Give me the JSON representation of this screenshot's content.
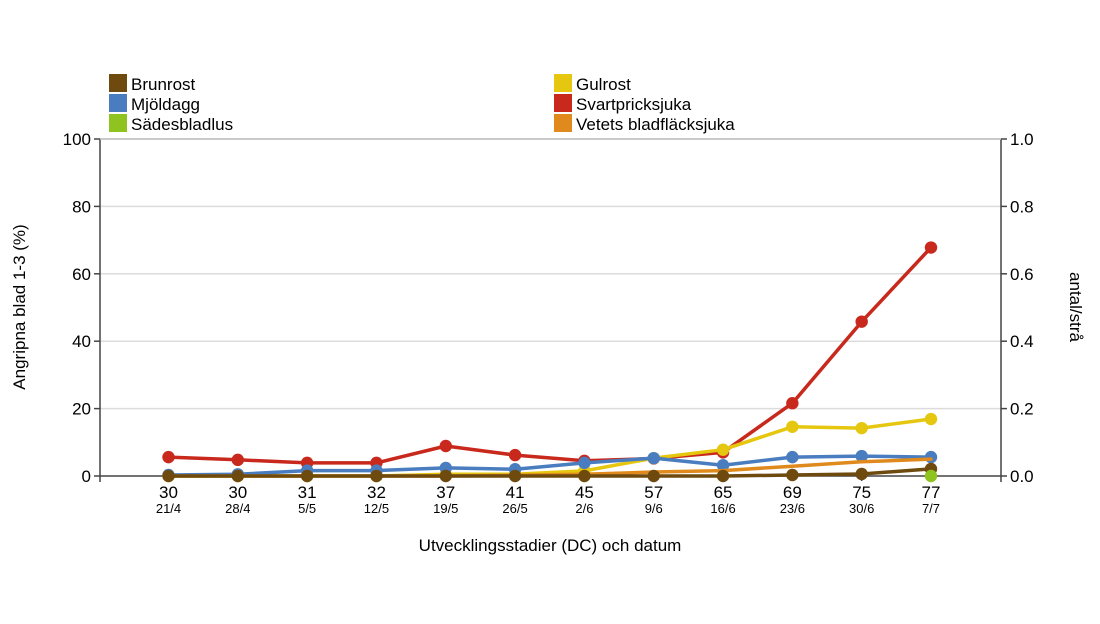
{
  "chart_data": {
    "type": "line",
    "xlabel": "Utvecklingsstadier (DC) och datum",
    "ylabel": "Angripna blad 1-3 (%)",
    "y2label": "antal/strå",
    "ylim": [
      0,
      100
    ],
    "y2lim": [
      0,
      1.0
    ],
    "yticks": [
      "0",
      "20",
      "40",
      "60",
      "80",
      "100"
    ],
    "y2ticks": [
      "0.0",
      "0.2",
      "0.4",
      "0.6",
      "0.8",
      "1.0"
    ],
    "grid": true,
    "legend_position": "top",
    "categories": [
      {
        "dc": "30",
        "date": "21/4"
      },
      {
        "dc": "30",
        "date": "28/4"
      },
      {
        "dc": "31",
        "date": "5/5"
      },
      {
        "dc": "32",
        "date": "12/5"
      },
      {
        "dc": "37",
        "date": "19/5"
      },
      {
        "dc": "41",
        "date": "26/5"
      },
      {
        "dc": "45",
        "date": "2/6"
      },
      {
        "dc": "57",
        "date": "9/6"
      },
      {
        "dc": "65",
        "date": "16/6"
      },
      {
        "dc": "69",
        "date": "23/6"
      },
      {
        "dc": "75",
        "date": "30/6"
      },
      {
        "dc": "77",
        "date": "7/7"
      }
    ],
    "series": [
      {
        "name": "Svartpricksjuka",
        "color": "#c8291c",
        "axis": "left",
        "marker": true,
        "values": [
          5.6,
          4.8,
          3.9,
          3.9,
          8.9,
          6.2,
          4.5,
          5.2,
          7.0,
          21.6,
          45.8,
          67.8
        ]
      },
      {
        "name": "Gulrost",
        "color": "#e6c70f",
        "axis": "left",
        "marker": true,
        "values": [
          0,
          0,
          0,
          0,
          0.5,
          0.5,
          1.5,
          5.3,
          7.8,
          14.6,
          14.2,
          16.9
        ]
      },
      {
        "name": "Mjöldagg",
        "color": "#4a7dbf",
        "axis": "left",
        "marker": true,
        "values": [
          0.3,
          0.5,
          1.6,
          1.6,
          2.4,
          2.0,
          3.9,
          5.3,
          3.2,
          5.6,
          5.9,
          5.6
        ]
      },
      {
        "name": "Vetets bladfläcksjuka",
        "color": "#e08a1e",
        "axis": "left",
        "marker": false,
        "values": [
          0,
          0,
          0,
          0,
          0,
          0.2,
          0.5,
          1.2,
          1.6,
          2.9,
          4.2,
          5.0
        ]
      },
      {
        "name": "Brunrost",
        "color": "#6e4a0e",
        "axis": "left",
        "marker": true,
        "values": [
          0,
          0,
          0,
          0,
          0,
          0,
          0,
          0,
          0,
          0.3,
          0.6,
          2.1
        ]
      },
      {
        "name": "Sädesbladlus",
        "color": "#8fc320",
        "axis": "right",
        "marker": true,
        "values": [
          null,
          null,
          null,
          null,
          null,
          null,
          null,
          null,
          null,
          null,
          null,
          0.0
        ]
      }
    ],
    "legend": [
      {
        "name": "Brunrost",
        "color": "#6e4a0e"
      },
      {
        "name": "Gulrost",
        "color": "#e6c70f"
      },
      {
        "name": "Mjöldagg",
        "color": "#4a7dbf"
      },
      {
        "name": "Svartpricksjuka",
        "color": "#c8291c"
      },
      {
        "name": "Sädesbladlus",
        "color": "#8fc320"
      },
      {
        "name": "Vetets bladfläcksjuka",
        "color": "#e08a1e"
      }
    ]
  }
}
